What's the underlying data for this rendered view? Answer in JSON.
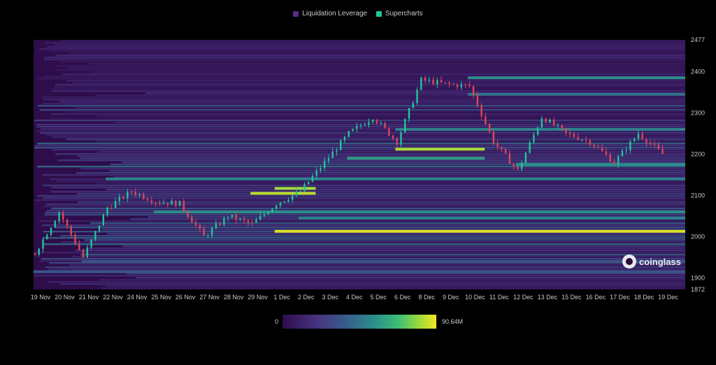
{
  "legend": {
    "items": [
      {
        "label": "Liquidation Leverage",
        "color": "#5c2a86"
      },
      {
        "label": "Supercharts",
        "color": "#21c49a"
      }
    ]
  },
  "colorbar": {
    "min_label": "0",
    "max_label": "90.64M"
  },
  "watermark": {
    "text": "coinglass"
  },
  "chart_data": {
    "type": "heatmap",
    "title": "",
    "xlabel": "",
    "ylabel": "",
    "x_tick_labels": [
      "19 Nov",
      "20 Nov",
      "21 Nov",
      "22 Nov",
      "24 Nov",
      "25 Nov",
      "26 Nov",
      "27 Nov",
      "28 Nov",
      "29 Nov",
      "1 Dec",
      "2 Dec",
      "3 Dec",
      "4 Dec",
      "5 Dec",
      "6 Dec",
      "8 Dec",
      "9 Dec",
      "10 Dec",
      "11 Dec",
      "12 Dec",
      "13 Dec",
      "15 Dec",
      "16 Dec",
      "17 Dec",
      "18 Dec",
      "19 Dec"
    ],
    "y_ticks": [
      2477,
      2400,
      2300,
      2200,
      2100,
      2000,
      1900,
      1872
    ],
    "ylim": [
      1872,
      2477
    ],
    "colorscale": [
      "#2e0d4a",
      "#46327e",
      "#375f8c",
      "#2b8f8c",
      "#3fbf72",
      "#a5dc37",
      "#f2e624"
    ],
    "value_range_usd": [
      0,
      90640000
    ],
    "price_series": [
      {
        "x": "19 Nov",
        "price": 1960
      },
      {
        "x": "20 Nov",
        "price": 2060
      },
      {
        "x": "21 Nov",
        "price": 1950
      },
      {
        "x": "22 Nov",
        "price": 2070
      },
      {
        "x": "24 Nov",
        "price": 2110
      },
      {
        "x": "25 Nov",
        "price": 2085
      },
      {
        "x": "26 Nov",
        "price": 2080
      },
      {
        "x": "27 Nov",
        "price": 2000
      },
      {
        "x": "28 Nov",
        "price": 2050
      },
      {
        "x": "29 Nov",
        "price": 2030
      },
      {
        "x": "1 Dec",
        "price": 2080
      },
      {
        "x": "2 Dec",
        "price": 2110
      },
      {
        "x": "3 Dec",
        "price": 2180
      },
      {
        "x": "4 Dec",
        "price": 2250
      },
      {
        "x": "5 Dec",
        "price": 2290
      },
      {
        "x": "6 Dec",
        "price": 2230
      },
      {
        "x": "8 Dec",
        "price": 2380
      },
      {
        "x": "9 Dec",
        "price": 2370
      },
      {
        "x": "10 Dec",
        "price": 2365
      },
      {
        "x": "11 Dec",
        "price": 2230
      },
      {
        "x": "12 Dec",
        "price": 2160
      },
      {
        "x": "13 Dec",
        "price": 2290
      },
      {
        "x": "15 Dec",
        "price": 2250
      },
      {
        "x": "16 Dec",
        "price": 2230
      },
      {
        "x": "17 Dec",
        "price": 2180
      },
      {
        "x": "18 Dec",
        "price": 2250
      },
      {
        "x": "19 Dec",
        "price": 2200
      }
    ],
    "liquidation_bands": [
      {
        "price": 2013,
        "intensity": 0.95,
        "from": "1 Dec",
        "to": "19 Dec"
      },
      {
        "price": 2105,
        "intensity": 0.88,
        "from": "29 Nov",
        "to": "2 Dec"
      },
      {
        "price": 2117,
        "intensity": 0.82,
        "from": "1 Dec",
        "to": "2 Dec"
      },
      {
        "price": 2212,
        "intensity": 0.85,
        "from": "6 Dec",
        "to": "10 Dec"
      },
      {
        "price": 2060,
        "intensity": 0.5,
        "from": "25 Nov",
        "to": "19 Dec"
      },
      {
        "price": 2045,
        "intensity": 0.45,
        "from": "2 Dec",
        "to": "19 Dec"
      },
      {
        "price": 2140,
        "intensity": 0.45,
        "from": "22 Nov",
        "to": "19 Dec"
      },
      {
        "price": 2190,
        "intensity": 0.55,
        "from": "4 Dec",
        "to": "10 Dec"
      },
      {
        "price": 2175,
        "intensity": 0.5,
        "from": "12 Dec",
        "to": "19 Dec"
      },
      {
        "price": 2260,
        "intensity": 0.45,
        "from": "6 Dec",
        "to": "19 Dec"
      },
      {
        "price": 2345,
        "intensity": 0.4,
        "from": "10 Dec",
        "to": "19 Dec"
      },
      {
        "price": 2385,
        "intensity": 0.5,
        "from": "10 Dec",
        "to": "19 Dec"
      },
      {
        "price": 1915,
        "intensity": 0.3,
        "from": "19 Nov",
        "to": "19 Dec"
      },
      {
        "price": 1940,
        "intensity": 0.28,
        "from": "21 Nov",
        "to": "19 Dec"
      }
    ]
  }
}
